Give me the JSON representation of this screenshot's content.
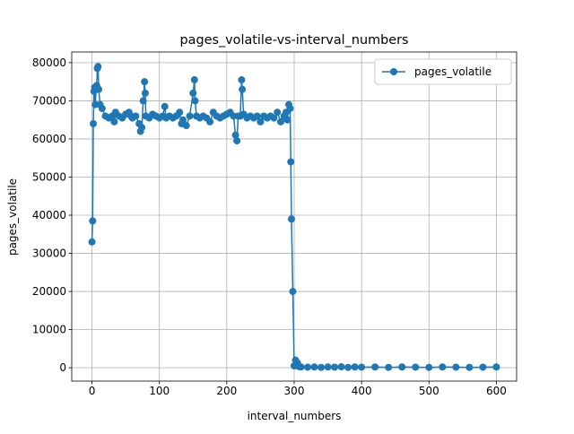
{
  "chart_data": {
    "type": "line",
    "title": "pages_volatile-vs-interval_numbers",
    "x_label": "interval_numbers",
    "y_label": "pages_volatile",
    "x": [
      0,
      1,
      2,
      3,
      4,
      5,
      6,
      7,
      8,
      9,
      10,
      12,
      15,
      20,
      25,
      30,
      33,
      35,
      40,
      45,
      50,
      55,
      58,
      60,
      65,
      70,
      72,
      74,
      76,
      78,
      79,
      80,
      85,
      90,
      95,
      100,
      105,
      108,
      110,
      115,
      120,
      125,
      130,
      133,
      135,
      140,
      145,
      150,
      152,
      153,
      155,
      160,
      165,
      170,
      175,
      180,
      185,
      190,
      195,
      200,
      205,
      210,
      213,
      215,
      217,
      220,
      222,
      223,
      225,
      230,
      235,
      240,
      245,
      250,
      255,
      260,
      265,
      270,
      275,
      280,
      285,
      288,
      290,
      292,
      294,
      295,
      296,
      298,
      300,
      302,
      305,
      307,
      310,
      320,
      330,
      340,
      350,
      360,
      370,
      380,
      390,
      400,
      420,
      440,
      460,
      480,
      500,
      520,
      540,
      560,
      580,
      600
    ],
    "series": [
      {
        "name": "pages_volatile",
        "color": "#1f77b4",
        "values": [
          33000,
          38500,
          64000,
          72500,
          73500,
          69000,
          73000,
          74000,
          78500,
          79000,
          73000,
          69000,
          68000,
          66000,
          65500,
          66000,
          64500,
          67000,
          66000,
          65500,
          66500,
          67000,
          66000,
          65500,
          66000,
          64000,
          62000,
          63000,
          70000,
          75000,
          72000,
          66000,
          65500,
          66500,
          66000,
          65500,
          66000,
          68500,
          65500,
          66000,
          65500,
          66000,
          67000,
          64000,
          65000,
          63500,
          66000,
          72000,
          75500,
          70000,
          66000,
          65500,
          66000,
          65500,
          64500,
          67000,
          66000,
          65500,
          66000,
          66500,
          67000,
          66000,
          61000,
          59500,
          66000,
          66000,
          75500,
          73000,
          66500,
          65500,
          66000,
          65500,
          66000,
          64500,
          66000,
          65500,
          66000,
          65500,
          67000,
          64500,
          66000,
          67000,
          65000,
          69000,
          68000,
          54000,
          39000,
          20000,
          500,
          2000,
          1200,
          300,
          200,
          150,
          200,
          100,
          200,
          150,
          250,
          100,
          200,
          150,
          200,
          100,
          200,
          150,
          100,
          200,
          150,
          100,
          150,
          200
        ]
      }
    ],
    "xlim": [
      -30,
      630
    ],
    "ylim": [
      -3500,
      82800
    ],
    "xticks": [
      0,
      100,
      200,
      300,
      400,
      500,
      600
    ],
    "yticks": [
      0,
      10000,
      20000,
      30000,
      40000,
      50000,
      60000,
      70000,
      80000
    ],
    "grid": true,
    "legend": "upper right"
  }
}
